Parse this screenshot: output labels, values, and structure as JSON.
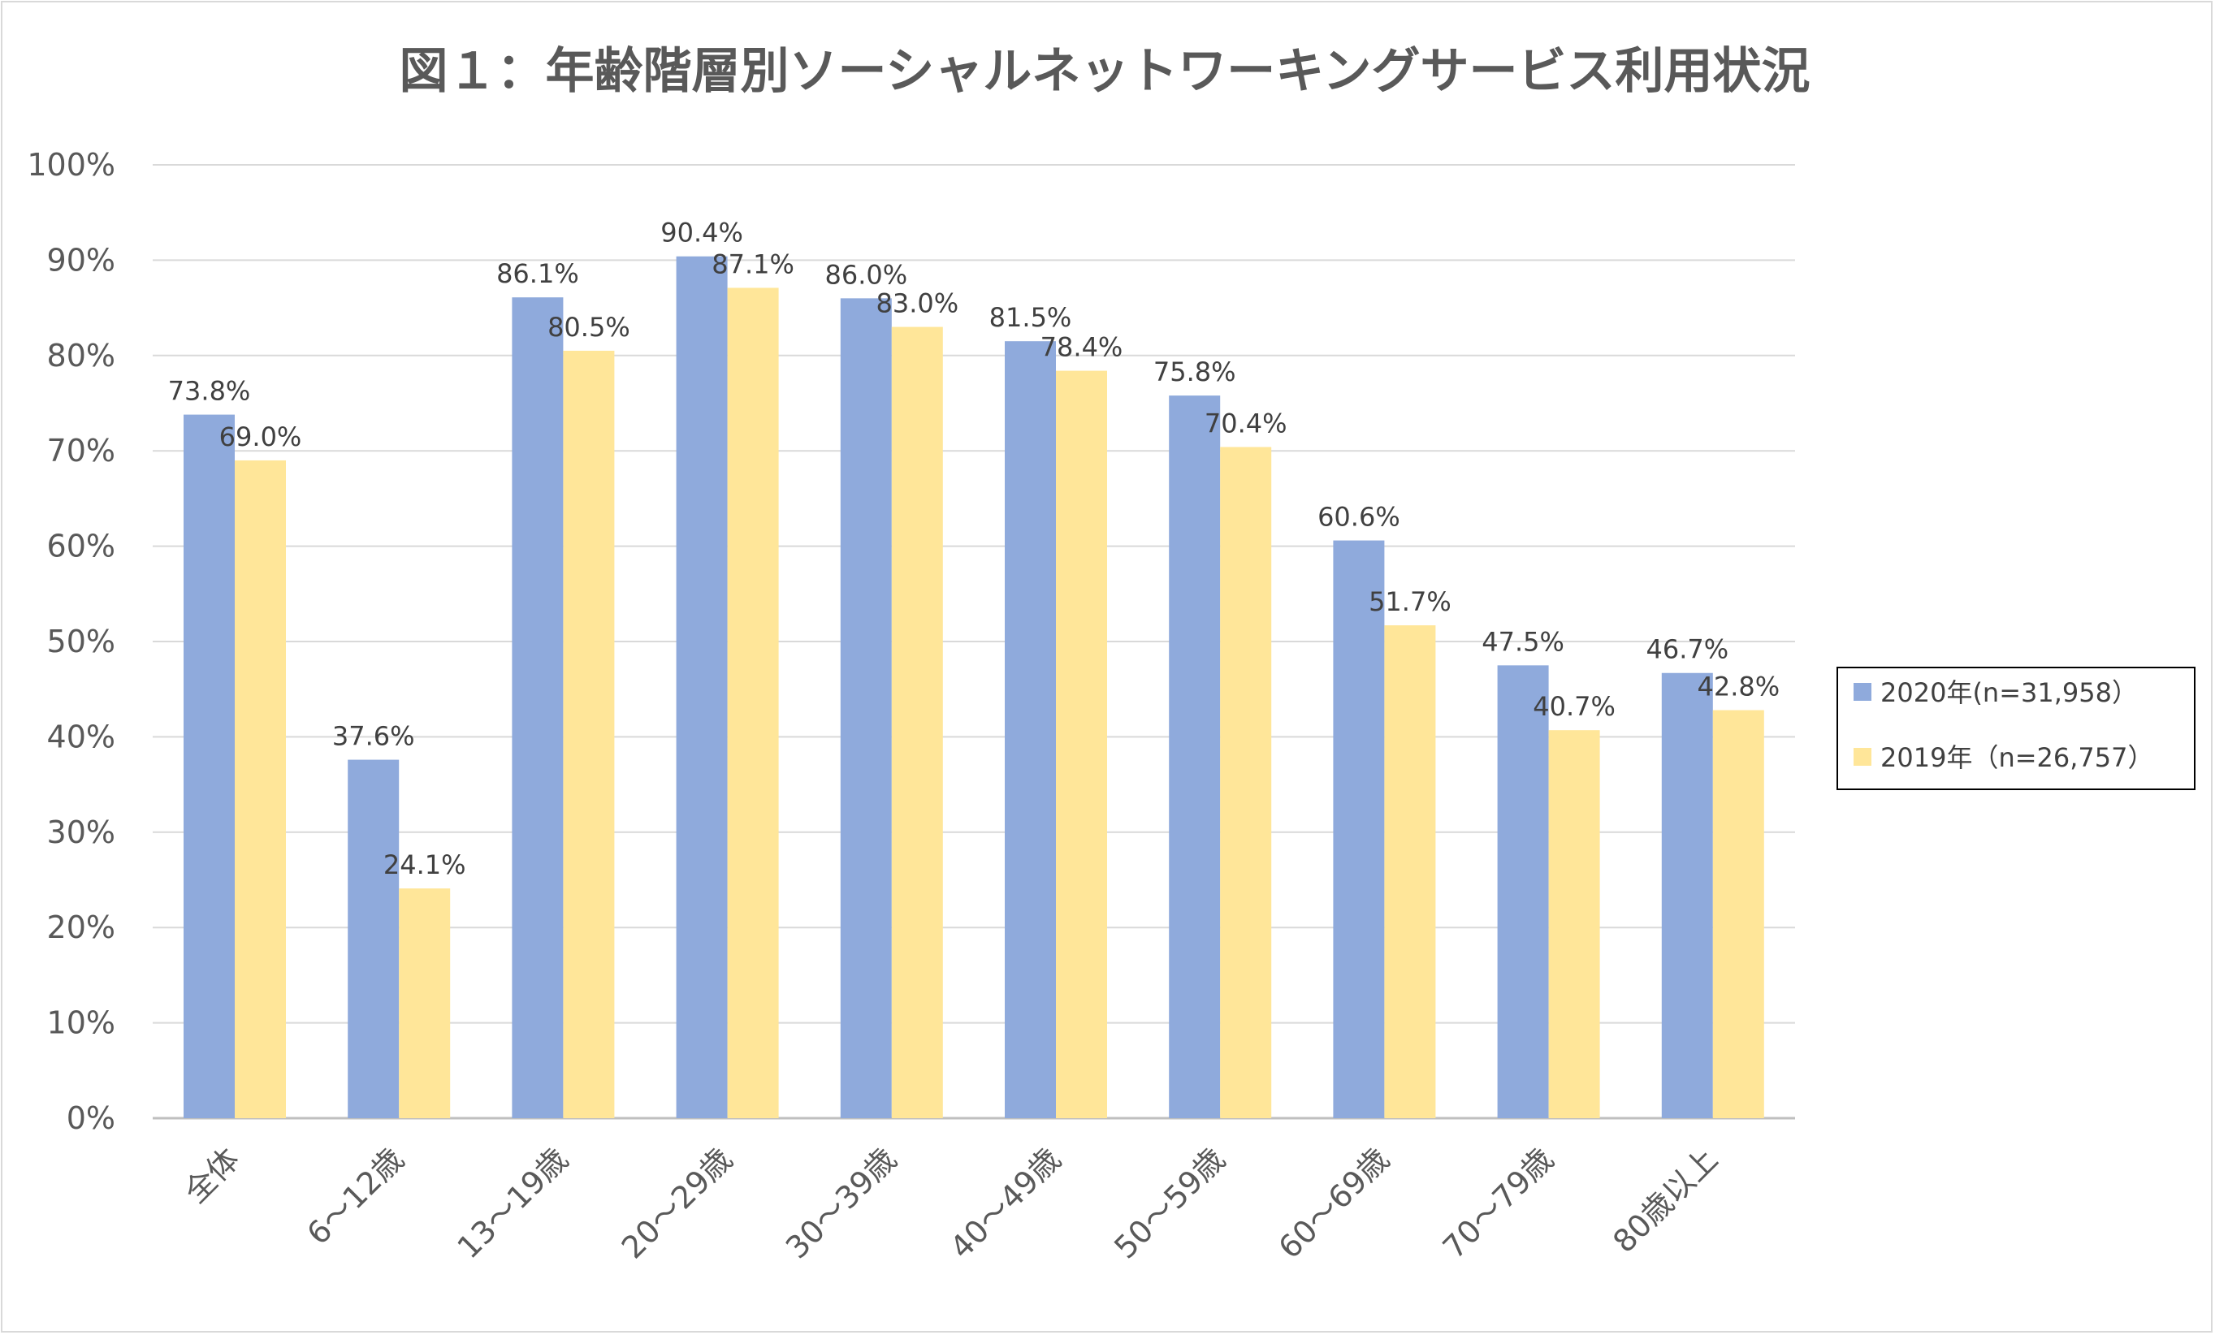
{
  "chart_data": {
    "type": "bar",
    "title": "図１：年齢階層別ソーシャルネットワーキングサービス利用状況",
    "categories": [
      "全体",
      "6～12歳",
      "13～19歳",
      "20～29歳",
      "30～39歳",
      "40～49歳",
      "50～59歳",
      "60～69歳",
      "70～79歳",
      "80歳以上"
    ],
    "series": [
      {
        "name": "2020年(n=31,958）",
        "color": "#8faadc",
        "values": [
          73.8,
          37.6,
          86.1,
          90.4,
          86.0,
          81.5,
          75.8,
          60.6,
          47.5,
          46.7
        ],
        "labels": [
          "73.8%",
          "37.6%",
          "86.1%",
          "90.4%",
          "86.0%",
          "81.5%",
          "75.8%",
          "60.6%",
          "47.5%",
          "46.7%"
        ]
      },
      {
        "name": "2019年（n=26,757）",
        "color": "#ffe699",
        "values": [
          69.0,
          24.1,
          80.5,
          87.1,
          83.0,
          78.4,
          70.4,
          51.7,
          40.7,
          42.8
        ],
        "labels": [
          "69.0%",
          "24.1%",
          "80.5%",
          "87.1%",
          "83.0%",
          "78.4%",
          "70.4%",
          "51.7%",
          "40.7%",
          "42.8%"
        ]
      }
    ],
    "ylim": [
      0,
      100
    ],
    "yticks": [
      "0%",
      "10%",
      "20%",
      "30%",
      "40%",
      "50%",
      "60%",
      "70%",
      "80%",
      "90%",
      "100%"
    ],
    "xlabel": "",
    "ylabel": "",
    "grid": true,
    "legend": "right",
    "colors": {
      "grid": "#d9d9d9",
      "axis": "#bfbfbf",
      "text": "#595959",
      "legend_border": "#000000"
    }
  }
}
